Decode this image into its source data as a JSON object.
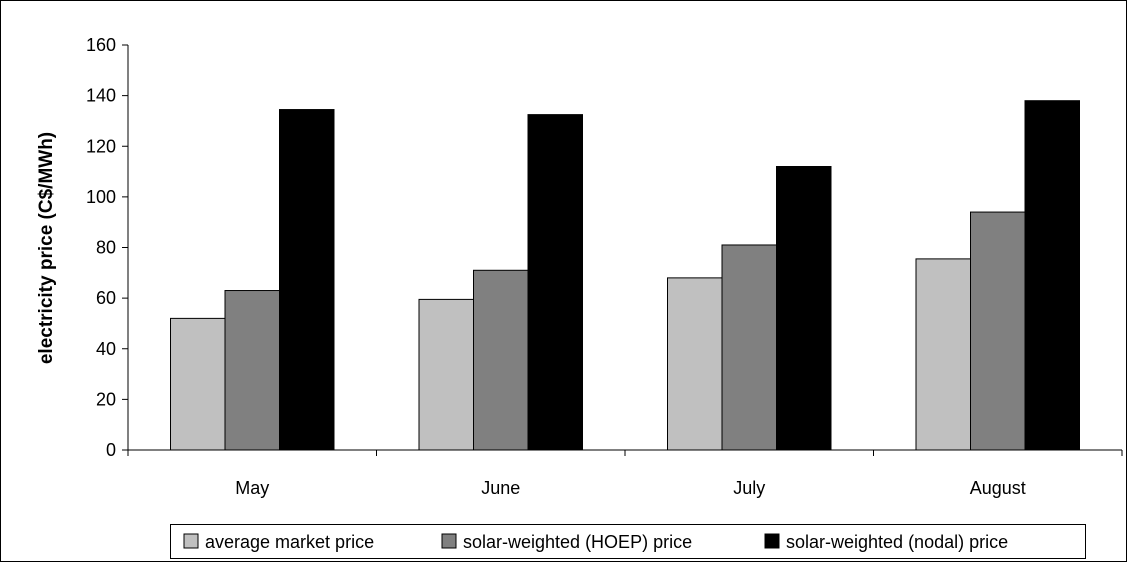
{
  "chart_data": {
    "type": "bar",
    "title": "",
    "xlabel": "",
    "ylabel": "electricity price (C$/MWh)",
    "ylim": [
      0,
      160
    ],
    "yticks": [
      "0",
      "20",
      "40",
      "60",
      "80",
      "100",
      "120",
      "140",
      "160"
    ],
    "categories": [
      "May",
      "June",
      "July",
      "August"
    ],
    "series": [
      {
        "name": "average market price",
        "color": "#c0c0c0",
        "values": [
          52,
          59.5,
          68,
          75.5
        ]
      },
      {
        "name": "solar-weighted (HOEP) price",
        "color": "#808080",
        "values": [
          63,
          71,
          81,
          94
        ]
      },
      {
        "name": "solar-weighted (nodal) price",
        "color": "#000000",
        "values": [
          134.5,
          132.5,
          112,
          138
        ]
      }
    ],
    "grid": false,
    "legend_position": "bottom"
  }
}
